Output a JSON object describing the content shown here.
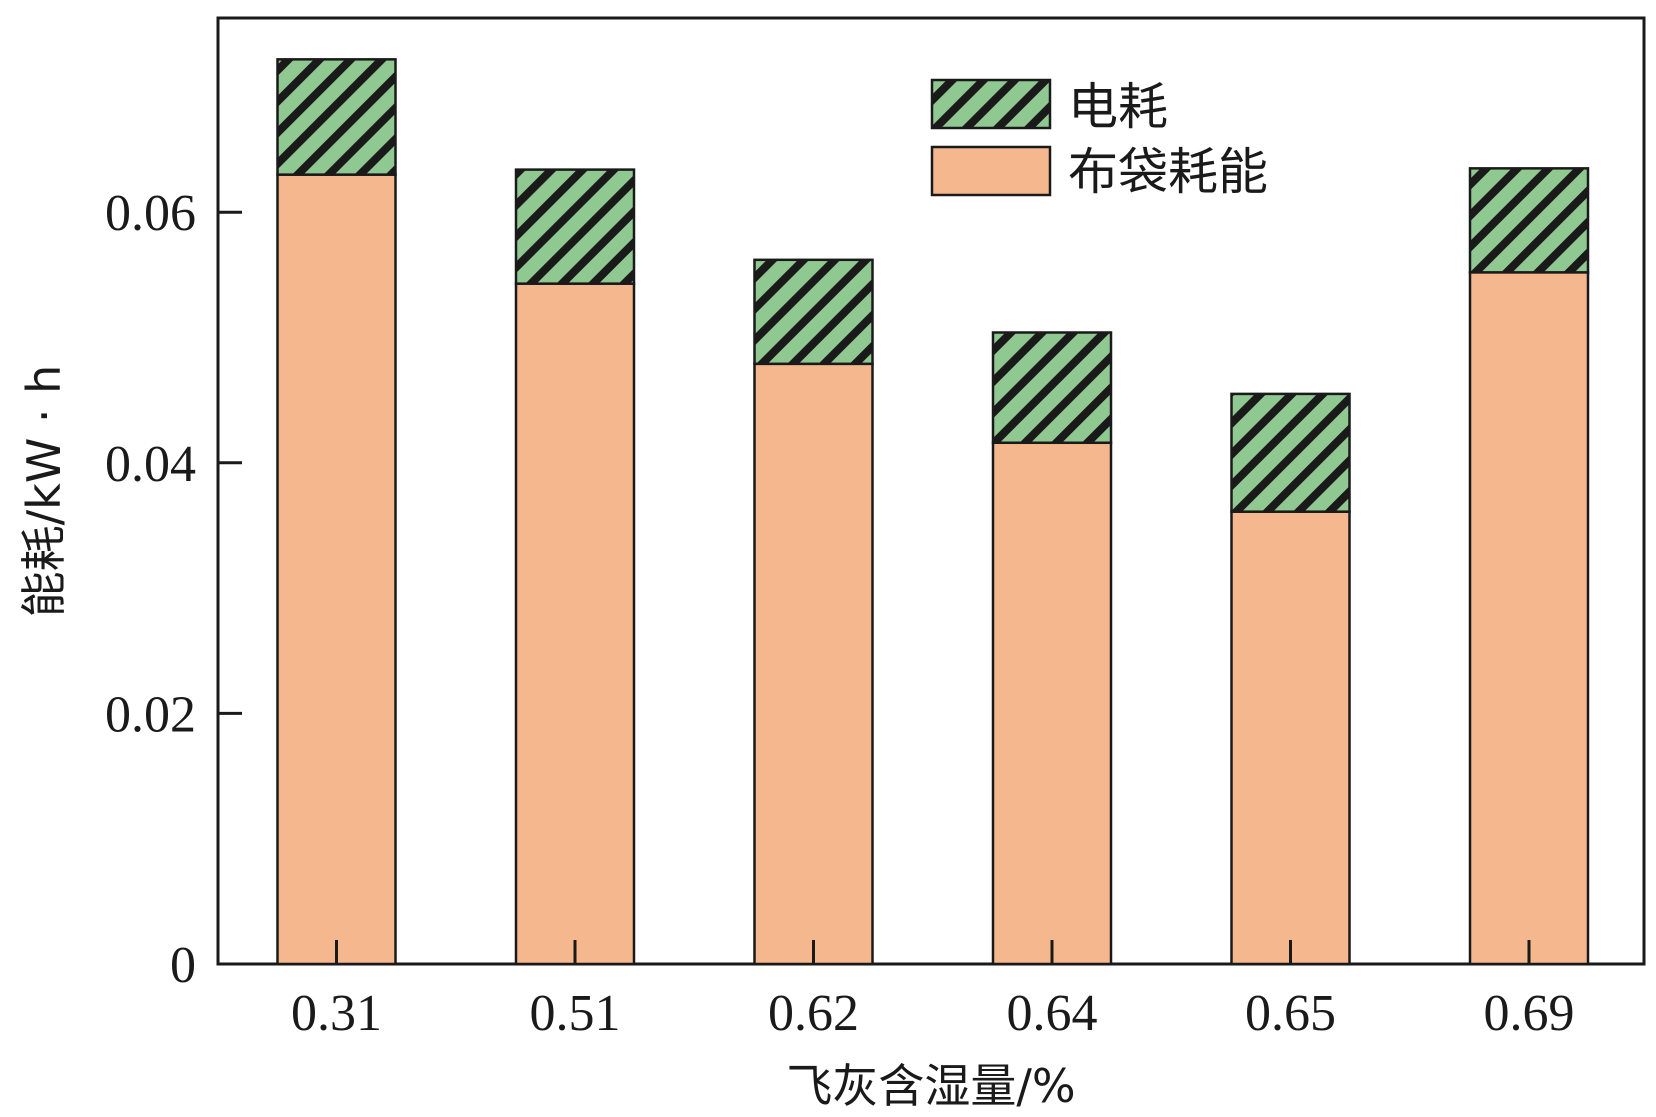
{
  "chart_data": {
    "type": "bar",
    "stacked": true,
    "categories": [
      "0.31",
      "0.51",
      "0.62",
      "0.64",
      "0.65",
      "0.69"
    ],
    "series": [
      {
        "name": "布袋耗能",
        "values": [
          0.063,
          0.0543,
          0.0479,
          0.0416,
          0.0361,
          0.0552
        ],
        "color": "#F5B88E",
        "pattern": "solid"
      },
      {
        "name": "电耗",
        "values": [
          0.0092,
          0.0091,
          0.0083,
          0.0088,
          0.0094,
          0.0083
        ],
        "color": "#90C891",
        "pattern": "hatch"
      }
    ],
    "xlabel": "飞灰含湿量/%",
    "ylabel": "能耗/kW · h",
    "ylim": [
      0,
      0.0755
    ],
    "yticks": [
      0,
      0.02,
      0.04,
      0.06
    ],
    "ytick_labels": [
      "0",
      "0.02",
      "0.04",
      "0.06"
    ],
    "legend": {
      "placement": "top-right",
      "order": [
        "电耗",
        "布袋耗能"
      ]
    },
    "grid": false
  }
}
